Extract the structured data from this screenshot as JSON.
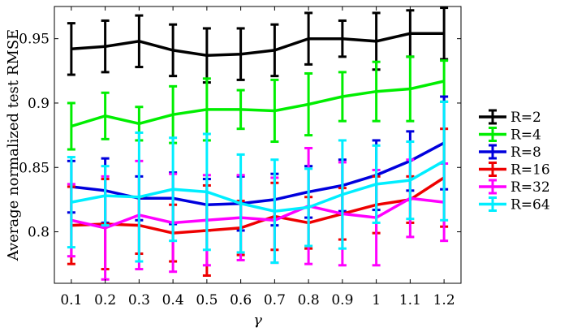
{
  "chart_data": {
    "type": "line",
    "title": "",
    "xlabel": "γ",
    "ylabel": "Average normalized test RMSE",
    "xlim": [
      0.05,
      1.25
    ],
    "ylim": [
      0.76,
      0.975
    ],
    "x": [
      0.1,
      0.2,
      0.3,
      0.4,
      0.5,
      0.6,
      0.7,
      0.8,
      0.9,
      1.0,
      1.1,
      1.2
    ],
    "x_tick_labels": [
      "0.1",
      "0.2",
      "0.3",
      "0.4",
      "0.5",
      "0.6",
      "0.7",
      "0.8",
      "0.9",
      "1",
      "1.1",
      "1.2"
    ],
    "y_ticks": [
      0.8,
      0.85,
      0.9,
      0.95
    ],
    "y_tick_labels": [
      "0.8",
      "0.85",
      "0.9",
      "0.95"
    ],
    "grid": false,
    "legend_position": "right",
    "series": [
      {
        "name": "R=2",
        "color": "#000000",
        "values": [
          0.942,
          0.944,
          0.948,
          0.941,
          0.937,
          0.938,
          0.941,
          0.95,
          0.95,
          0.948,
          0.954,
          0.954
        ],
        "errors": [
          0.02,
          0.02,
          0.02,
          0.02,
          0.021,
          0.02,
          0.02,
          0.02,
          0.014,
          0.022,
          0.018,
          0.02
        ]
      },
      {
        "name": "R=4",
        "color": "#00ee00",
        "values": [
          0.882,
          0.89,
          0.884,
          0.891,
          0.895,
          0.895,
          0.894,
          0.899,
          0.905,
          0.909,
          0.911,
          0.917
        ],
        "errors": [
          0.018,
          0.018,
          0.013,
          0.022,
          0.024,
          0.015,
          0.024,
          0.024,
          0.019,
          0.023,
          0.025,
          0.016
        ]
      },
      {
        "name": "R=8",
        "color": "#0000dd",
        "values": [
          0.835,
          0.832,
          0.826,
          0.826,
          0.821,
          0.822,
          0.825,
          0.831,
          0.836,
          0.844,
          0.855,
          0.869
        ],
        "errors": [
          0.02,
          0.025,
          0.017,
          0.02,
          0.02,
          0.021,
          0.02,
          0.02,
          0.02,
          0.027,
          0.023,
          0.036
        ]
      },
      {
        "name": "R=16",
        "color": "#ee0000",
        "values": [
          0.805,
          0.806,
          0.805,
          0.799,
          0.801,
          0.803,
          0.812,
          0.807,
          0.814,
          0.821,
          0.825,
          0.842
        ],
        "errors": [
          0.03,
          0.035,
          0.022,
          0.022,
          0.035,
          0.021,
          0.026,
          0.02,
          0.02,
          0.022,
          0.018,
          0.038
        ]
      },
      {
        "name": "R=32",
        "color": "#ff00ff",
        "values": [
          0.809,
          0.803,
          0.813,
          0.807,
          0.809,
          0.811,
          0.809,
          0.82,
          0.814,
          0.811,
          0.826,
          0.823
        ],
        "errors": [
          0.028,
          0.04,
          0.042,
          0.038,
          0.035,
          0.033,
          0.033,
          0.045,
          0.04,
          0.037,
          0.03,
          0.03
        ]
      },
      {
        "name": "R=64",
        "color": "#00eeff",
        "values": [
          0.823,
          0.828,
          0.827,
          0.833,
          0.831,
          0.822,
          0.816,
          0.819,
          0.829,
          0.837,
          0.84,
          0.855
        ],
        "errors": [
          0.035,
          0.023,
          0.05,
          0.04,
          0.045,
          0.038,
          0.04,
          0.03,
          0.042,
          0.03,
          0.03,
          0.046
        ]
      }
    ]
  }
}
